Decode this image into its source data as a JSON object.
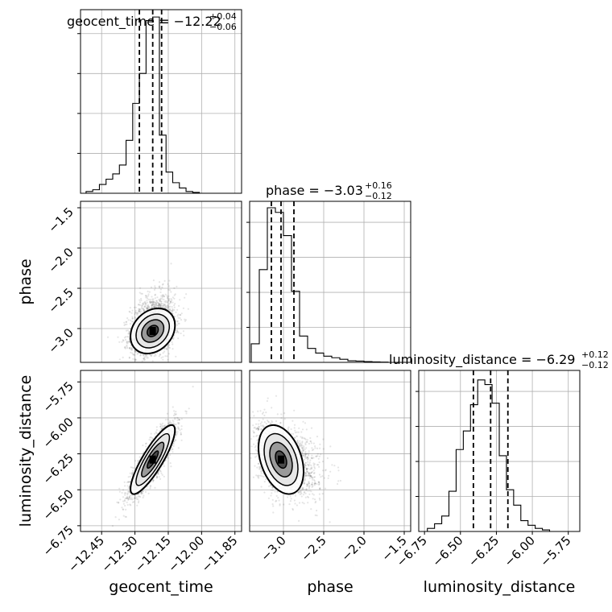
{
  "chart_data": {
    "type": "corner",
    "parameters": [
      {
        "name": "geocent_time",
        "title_main": "geocent_time = −12.22",
        "title_plus": "+0.04",
        "title_minus": "−0.06",
        "median": -12.22,
        "q_low": -12.28,
        "q_high": -12.18,
        "range": [
          -12.545,
          -11.82
        ],
        "ticks": [
          -12.45,
          -12.3,
          -12.15,
          -12.0,
          -11.85
        ],
        "tick_labels": [
          "−12.45",
          "−12.30",
          "−12.15",
          "−12.00",
          "−11.85"
        ],
        "hist_bin_edges": [
          -12.52,
          -12.49,
          -12.46,
          -12.43,
          -12.4,
          -12.37,
          -12.34,
          -12.31,
          -12.28,
          -12.25,
          -12.22,
          -12.19,
          -12.16,
          -12.13,
          -12.1,
          -12.07,
          -12.04,
          -12.01
        ],
        "hist_counts": [
          0.01,
          0.02,
          0.05,
          0.08,
          0.11,
          0.16,
          0.3,
          0.51,
          0.68,
          0.98,
          1.0,
          0.33,
          0.12,
          0.06,
          0.03,
          0.01,
          0.005
        ]
      },
      {
        "name": "phase",
        "title_main": "phase = −3.03",
        "title_plus": "+0.16",
        "title_minus": "−0.12",
        "median": -3.03,
        "q_low": -3.15,
        "q_high": -2.87,
        "range": [
          -3.42,
          -1.42
        ],
        "ticks": [
          -3.0,
          -2.5,
          -2.0,
          -1.5
        ],
        "tick_labels": [
          "−3.0",
          "−2.5",
          "−2.0",
          "−1.5"
        ],
        "hist_bin_edges": [
          -3.4,
          -3.3,
          -3.2,
          -3.1,
          -3.0,
          -2.9,
          -2.8,
          -2.7,
          -2.6,
          -2.5,
          -2.4,
          -2.3,
          -2.2,
          -2.1,
          -2.0,
          -1.9,
          -1.8,
          -1.7
        ],
        "hist_counts": [
          0.12,
          0.6,
          1.0,
          0.97,
          0.82,
          0.46,
          0.17,
          0.09,
          0.06,
          0.04,
          0.03,
          0.02,
          0.01,
          0.008,
          0.005,
          0.003,
          0.002
        ]
      },
      {
        "name": "luminosity_distance",
        "title_main": "luminosity_distance = −6.29",
        "title_plus": "+0.12",
        "title_minus": "−0.12",
        "median": -6.29,
        "q_low": -6.41,
        "q_high": -6.17,
        "range": [
          -6.79,
          -5.67
        ],
        "ticks": [
          -6.75,
          -6.5,
          -6.25,
          -6.0,
          -5.75
        ],
        "tick_labels": [
          "−6.75",
          "−6.50",
          "−6.25",
          "−6.00",
          "−5.75"
        ],
        "hist_bin_edges": [
          -6.73,
          -6.68,
          -6.63,
          -6.58,
          -6.53,
          -6.48,
          -6.43,
          -6.38,
          -6.33,
          -6.28,
          -6.23,
          -6.18,
          -6.13,
          -6.08,
          -6.03,
          -5.98,
          -5.93,
          -5.88
        ],
        "hist_counts": [
          0.02,
          0.05,
          0.1,
          0.26,
          0.53,
          0.65,
          0.82,
          0.98,
          0.95,
          0.83,
          0.49,
          0.27,
          0.17,
          0.07,
          0.04,
          0.02,
          0.01
        ]
      }
    ],
    "correlations": {
      "geocent_time-phase": 0.25,
      "geocent_time-luminosity_distance": 0.85,
      "phase-luminosity_distance": -0.35
    },
    "samples_per_panel": 2200,
    "contour_levels": [
      "0.5 sigma",
      "1 sigma",
      "1.5 sigma",
      "2 sigma"
    ],
    "quantile_line_style": "dashed",
    "grid": true,
    "diagonal_type": "step histogram with 16/50/84 percentile lines",
    "offdiagonal_type": "scatter with filled density contours"
  }
}
